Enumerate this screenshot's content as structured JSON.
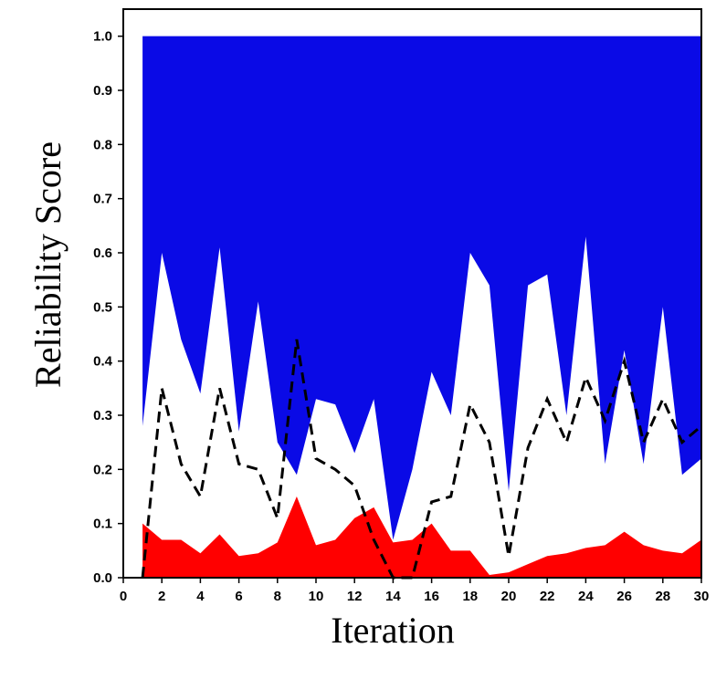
{
  "chart_data": {
    "type": "area",
    "xlabel": "Iteration",
    "ylabel": "Reliability Score",
    "xlim": [
      0,
      30
    ],
    "ylim": [
      0,
      1.05
    ],
    "xticks": [
      0,
      2,
      4,
      6,
      8,
      10,
      12,
      14,
      16,
      18,
      20,
      22,
      24,
      26,
      28,
      30
    ],
    "yticks": [
      "0.0",
      "0.1",
      "0.2",
      "0.3",
      "0.4",
      "0.5",
      "0.6",
      "0.7",
      "0.8",
      "0.9",
      "1.0"
    ],
    "grid": false,
    "x": [
      1,
      2,
      3,
      4,
      5,
      6,
      7,
      8,
      9,
      10,
      11,
      12,
      13,
      14,
      15,
      16,
      17,
      18,
      19,
      20,
      21,
      22,
      23,
      24,
      25,
      26,
      27,
      28,
      29,
      30
    ],
    "series": [
      {
        "color": "#0a0ae6",
        "role": "upper-band-top",
        "values": [
          1.0,
          1.0,
          1.0,
          1.0,
          1.0,
          1.0,
          1.0,
          1.0,
          1.0,
          1.0,
          1.0,
          1.0,
          1.0,
          1.0,
          1.0,
          1.0,
          1.0,
          1.0,
          1.0,
          1.0,
          1.0,
          1.0,
          1.0,
          1.0,
          1.0,
          1.0,
          1.0,
          1.0,
          1.0,
          1.0
        ]
      },
      {
        "color": "#ffffff",
        "role": "upper-band-bottom",
        "values": [
          0.28,
          0.6,
          0.44,
          0.34,
          0.61,
          0.27,
          0.51,
          0.25,
          0.19,
          0.33,
          0.32,
          0.23,
          0.33,
          0.07,
          0.2,
          0.38,
          0.3,
          0.6,
          0.54,
          0.16,
          0.54,
          0.56,
          0.3,
          0.63,
          0.21,
          0.42,
          0.21,
          0.5,
          0.19,
          0.22
        ]
      },
      {
        "color": "#000000",
        "style": "dashed",
        "values": [
          0.0,
          0.35,
          0.21,
          0.15,
          0.35,
          0.21,
          0.2,
          0.11,
          0.44,
          0.22,
          0.2,
          0.17,
          0.07,
          0.0,
          0.0,
          0.14,
          0.15,
          0.32,
          0.25,
          0.04,
          0.24,
          0.33,
          0.25,
          0.37,
          0.29,
          0.4,
          0.25,
          0.33,
          0.25,
          0.28
        ]
      },
      {
        "color": "#ff0000",
        "role": "lower-band",
        "values": [
          0.1,
          0.07,
          0.07,
          0.045,
          0.08,
          0.04,
          0.045,
          0.065,
          0.15,
          0.06,
          0.07,
          0.11,
          0.13,
          0.065,
          0.07,
          0.1,
          0.05,
          0.05,
          0.005,
          0.01,
          0.025,
          0.04,
          0.045,
          0.055,
          0.06,
          0.085,
          0.06,
          0.05,
          0.045,
          0.07
        ]
      }
    ]
  }
}
